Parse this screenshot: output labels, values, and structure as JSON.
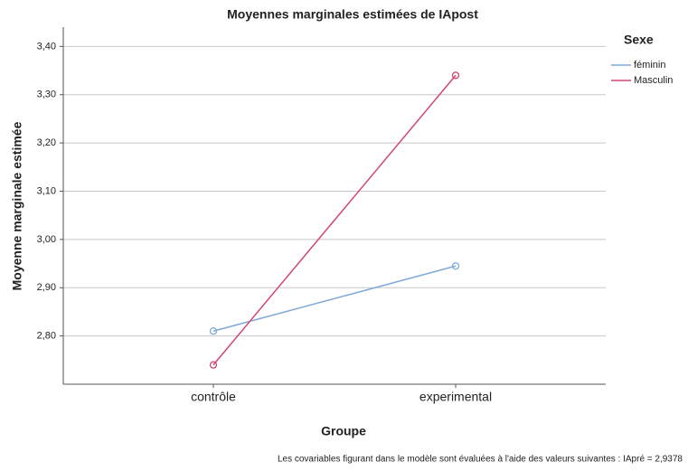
{
  "chart_data": {
    "type": "line",
    "title": "Moyennes marginales estimées de IApost",
    "x_label": "Groupe",
    "y_label": "Moyenne marginale estimée",
    "legend_title": "Sexe",
    "note": "Les covariables figurant dans le modèle sont évaluées à l'aide des valeurs suivantes : IApré = 2,9378",
    "categories": [
      "contrôle",
      "experimental"
    ],
    "series": [
      {
        "name": "féminin",
        "color": "#7fa9d9",
        "values": [
          2.81,
          2.945
        ]
      },
      {
        "name": "Masculin",
        "color": "#d2466f",
        "values": [
          2.74,
          3.34
        ]
      }
    ],
    "ylim": [
      2.7,
      3.44
    ],
    "yticks": [
      {
        "value": 2.8,
        "label": "2,80"
      },
      {
        "value": 2.9,
        "label": "2,90"
      },
      {
        "value": 3.0,
        "label": "3,00"
      },
      {
        "value": 3.1,
        "label": "3,10"
      },
      {
        "value": 3.2,
        "label": "3,20"
      },
      {
        "value": 3.3,
        "label": "3,30"
      },
      {
        "value": 3.4,
        "label": "3,40"
      }
    ],
    "grid": true,
    "legend_position": "right"
  }
}
